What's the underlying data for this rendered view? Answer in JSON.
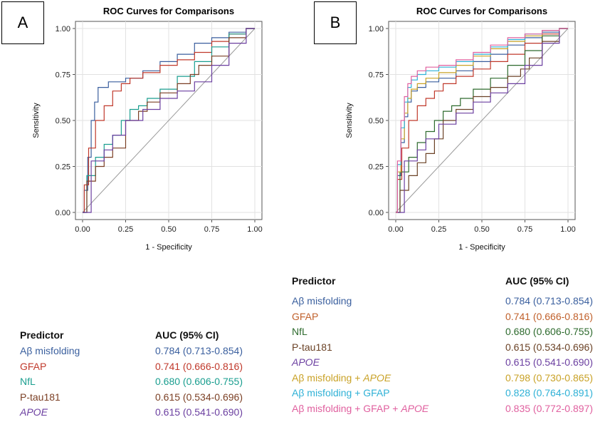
{
  "panels": [
    {
      "id": "A",
      "label": "A"
    },
    {
      "id": "B",
      "label": "B"
    }
  ],
  "chart_data": [
    {
      "type": "line",
      "title": "ROC Curves for Comparisons",
      "xlabel": "1 - Specificity",
      "ylabel": "Sensitivity",
      "xlim": [
        0,
        1
      ],
      "ylim": [
        0,
        1
      ],
      "xticks": [
        "0.00",
        "0.25",
        "0.50",
        "0.75",
        "1.00"
      ],
      "yticks": [
        "0.00",
        "0.25",
        "0.50",
        "0.75",
        "1.00"
      ],
      "grid": true,
      "series": [
        {
          "name": "Aβ misfolding",
          "color": "#3a5f9e",
          "x": [
            0,
            0.02,
            0.04,
            0.06,
            0.08,
            0.1,
            0.2,
            0.3,
            0.4,
            0.5,
            0.6,
            0.7,
            0.8,
            0.9,
            1.0
          ],
          "y": [
            0,
            0.12,
            0.3,
            0.5,
            0.6,
            0.68,
            0.71,
            0.73,
            0.77,
            0.82,
            0.86,
            0.92,
            0.95,
            0.98,
            1.0
          ]
        },
        {
          "name": "GFAP",
          "color": "#c0392b",
          "x": [
            0,
            0.02,
            0.05,
            0.1,
            0.15,
            0.2,
            0.25,
            0.3,
            0.4,
            0.5,
            0.6,
            0.7,
            0.8,
            0.9,
            1.0
          ],
          "y": [
            0,
            0.15,
            0.35,
            0.5,
            0.58,
            0.66,
            0.7,
            0.73,
            0.76,
            0.8,
            0.83,
            0.87,
            0.93,
            0.97,
            1.0
          ]
        },
        {
          "name": "NfL",
          "color": "#1a9e8f",
          "x": [
            0,
            0.05,
            0.1,
            0.15,
            0.2,
            0.25,
            0.3,
            0.35,
            0.4,
            0.5,
            0.6,
            0.7,
            0.8,
            0.9,
            1.0
          ],
          "y": [
            0,
            0.2,
            0.3,
            0.37,
            0.42,
            0.5,
            0.56,
            0.58,
            0.62,
            0.67,
            0.74,
            0.82,
            0.9,
            0.97,
            1.0
          ]
        },
        {
          "name": "P-tau181",
          "color": "#7b3f24",
          "x": [
            0,
            0.05,
            0.1,
            0.15,
            0.2,
            0.3,
            0.35,
            0.4,
            0.5,
            0.6,
            0.65,
            0.7,
            0.8,
            0.9,
            1.0
          ],
          "y": [
            0,
            0.17,
            0.25,
            0.3,
            0.35,
            0.5,
            0.55,
            0.6,
            0.65,
            0.7,
            0.75,
            0.8,
            0.85,
            0.95,
            1.0
          ]
        },
        {
          "name": "APOE",
          "color": "#6b3fa0",
          "x": [
            0,
            0.1,
            0.15,
            0.2,
            0.3,
            0.4,
            0.5,
            0.6,
            0.7,
            0.8,
            0.9,
            1.0
          ],
          "y": [
            0,
            0.28,
            0.34,
            0.42,
            0.5,
            0.56,
            0.62,
            0.66,
            0.71,
            0.8,
            0.92,
            1.0
          ]
        }
      ]
    },
    {
      "type": "line",
      "title": "ROC Curves for Comparisons",
      "xlabel": "1 - Specificity",
      "ylabel": "Sensitivity",
      "xlim": [
        0,
        1
      ],
      "ylim": [
        0,
        1
      ],
      "xticks": [
        "0.00",
        "0.25",
        "0.50",
        "0.75",
        "1.00"
      ],
      "yticks": [
        "0.00",
        "0.25",
        "0.50",
        "0.75",
        "1.00"
      ],
      "grid": true,
      "series": [
        {
          "name": "Aβ misfolding",
          "color": "#3a5f9e",
          "x": [
            0,
            0.02,
            0.04,
            0.06,
            0.08,
            0.1,
            0.15,
            0.2,
            0.3,
            0.4,
            0.5,
            0.6,
            0.7,
            0.8,
            0.9,
            1.0
          ],
          "y": [
            0,
            0.2,
            0.38,
            0.52,
            0.6,
            0.66,
            0.68,
            0.71,
            0.73,
            0.77,
            0.82,
            0.86,
            0.91,
            0.95,
            0.98,
            1.0
          ]
        },
        {
          "name": "GFAP",
          "color": "#c0392b",
          "x": [
            0,
            0.02,
            0.05,
            0.1,
            0.15,
            0.2,
            0.25,
            0.3,
            0.4,
            0.5,
            0.6,
            0.7,
            0.8,
            0.9,
            1.0
          ],
          "y": [
            0,
            0.18,
            0.35,
            0.5,
            0.58,
            0.62,
            0.66,
            0.7,
            0.74,
            0.78,
            0.82,
            0.86,
            0.92,
            0.97,
            1.0
          ]
        },
        {
          "name": "NfL",
          "color": "#2d6a2d",
          "x": [
            0,
            0.05,
            0.1,
            0.15,
            0.2,
            0.25,
            0.3,
            0.35,
            0.4,
            0.5,
            0.6,
            0.7,
            0.8,
            0.9,
            1.0
          ],
          "y": [
            0,
            0.22,
            0.3,
            0.38,
            0.44,
            0.5,
            0.55,
            0.58,
            0.62,
            0.67,
            0.73,
            0.8,
            0.88,
            0.96,
            1.0
          ]
        },
        {
          "name": "P-tau181",
          "color": "#6b4226",
          "x": [
            0,
            0.05,
            0.1,
            0.15,
            0.2,
            0.25,
            0.3,
            0.4,
            0.5,
            0.6,
            0.7,
            0.75,
            0.8,
            0.9,
            1.0
          ],
          "y": [
            0,
            0.12,
            0.2,
            0.27,
            0.32,
            0.4,
            0.5,
            0.56,
            0.63,
            0.68,
            0.74,
            0.78,
            0.84,
            0.93,
            1.0
          ]
        },
        {
          "name": "APOE",
          "color": "#6b3fa0",
          "x": [
            0,
            0.1,
            0.15,
            0.2,
            0.3,
            0.4,
            0.5,
            0.6,
            0.7,
            0.8,
            0.9,
            1.0
          ],
          "y": [
            0,
            0.28,
            0.34,
            0.4,
            0.48,
            0.54,
            0.6,
            0.65,
            0.7,
            0.8,
            0.92,
            1.0
          ]
        },
        {
          "name": "Aβ misfolding + APOE",
          "color": "#c9a227",
          "x": [
            0,
            0.02,
            0.04,
            0.06,
            0.08,
            0.1,
            0.15,
            0.2,
            0.3,
            0.4,
            0.5,
            0.6,
            0.7,
            0.8,
            0.9,
            1.0
          ],
          "y": [
            0,
            0.22,
            0.4,
            0.54,
            0.62,
            0.67,
            0.7,
            0.73,
            0.76,
            0.8,
            0.85,
            0.89,
            0.93,
            0.96,
            0.99,
            1.0
          ]
        },
        {
          "name": "Aβ misfolding + GFAP",
          "color": "#2fb1d6",
          "x": [
            0,
            0.02,
            0.04,
            0.06,
            0.08,
            0.1,
            0.15,
            0.2,
            0.3,
            0.4,
            0.5,
            0.6,
            0.7,
            0.8,
            0.9,
            1.0
          ],
          "y": [
            0,
            0.26,
            0.46,
            0.6,
            0.68,
            0.72,
            0.75,
            0.77,
            0.79,
            0.82,
            0.86,
            0.9,
            0.94,
            0.97,
            0.99,
            1.0
          ]
        },
        {
          "name": "Aβ misfolding + GFAP + APOE",
          "color": "#e0609f",
          "x": [
            0,
            0.02,
            0.04,
            0.06,
            0.08,
            0.1,
            0.15,
            0.2,
            0.3,
            0.4,
            0.5,
            0.6,
            0.7,
            0.8,
            0.9,
            1.0
          ],
          "y": [
            0,
            0.28,
            0.5,
            0.63,
            0.7,
            0.74,
            0.77,
            0.79,
            0.8,
            0.83,
            0.87,
            0.91,
            0.95,
            0.97,
            0.99,
            1.0
          ]
        }
      ]
    }
  ],
  "tables": [
    {
      "header_predictor": "Predictor",
      "header_auc": "AUC (95% CI)",
      "rows": [
        {
          "predictor": "Aβ misfolding",
          "auc": "0.784 (0.713-0.854)",
          "color": "#3a5f9e",
          "italic": false
        },
        {
          "predictor": "GFAP",
          "auc": "0.741 (0.666-0.816)",
          "color": "#c0392b",
          "italic": false
        },
        {
          "predictor": "NfL",
          "auc": "0.680 (0.606-0.755)",
          "color": "#1a9e8f",
          "italic": false
        },
        {
          "predictor": "P-tau181",
          "auc": "0.615 (0.534-0.696)",
          "color": "#7b3f24",
          "italic": false
        },
        {
          "predictor": "APOE",
          "auc": "0.615 (0.541-0.690)",
          "color": "#6b3fa0",
          "italic": true
        }
      ]
    },
    {
      "header_predictor": "Predictor",
      "header_auc": "AUC (95% CI)",
      "rows": [
        {
          "predictor": "Aβ misfolding",
          "auc": "0.784 (0.713-0.854)",
          "color": "#3a5f9e",
          "italic": false
        },
        {
          "predictor": "GFAP",
          "auc": "0.741 (0.666-0.816)",
          "color": "#c0602b",
          "italic": false
        },
        {
          "predictor": "NfL",
          "auc": "0.680 (0.606-0.755)",
          "color": "#2d6a2d",
          "italic": false
        },
        {
          "predictor": "P-tau181",
          "auc": "0.615 (0.534-0.696)",
          "color": "#6b4226",
          "italic": false
        },
        {
          "predictor": "APOE",
          "auc": "0.615 (0.541-0.690)",
          "color": "#6b3fa0",
          "italic": true
        },
        {
          "predictor": "Aβ misfolding + ",
          "predictor_italic_suffix": "APOE",
          "auc": "0.798 (0.730-0.865)",
          "color": "#c9a227",
          "italic": false
        },
        {
          "predictor": "Aβ misfolding + GFAP",
          "auc": "0.828 (0.764-0.891)",
          "color": "#2fb1d6",
          "italic": false
        },
        {
          "predictor": "Aβ misfolding + GFAP + ",
          "predictor_italic_suffix": "APOE",
          "auc": "0.835 (0.772-0.897)",
          "color": "#e0609f",
          "italic": false
        }
      ]
    }
  ]
}
